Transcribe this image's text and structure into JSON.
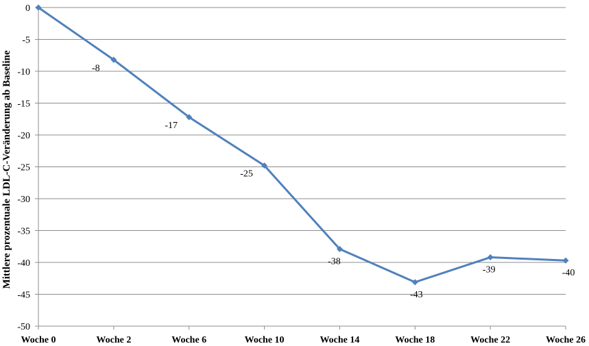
{
  "chart_data": {
    "type": "line",
    "title": "",
    "xlabel": "",
    "ylabel": "Mittlere prozentuale LDL-C-Veränderung  ab Baseline",
    "categories": [
      "Woche 0",
      "Woche 2",
      "Woche 6",
      "Woche 10",
      "Woche 14",
      "Woche 18",
      "Woche 22",
      "Woche 26"
    ],
    "series": [
      {
        "values": [
          0,
          -8.2,
          -17.2,
          -24.8,
          -37.9,
          -43.1,
          -39.2,
          -39.7
        ],
        "data_labels": [
          "",
          "-8",
          "-17",
          "-25",
          "-38",
          "-43",
          "-39",
          "-40"
        ],
        "color": "#4f81bd"
      }
    ],
    "ylim": [
      -50,
      0
    ],
    "yticks": [
      0,
      -5,
      -10,
      -15,
      -20,
      -25,
      -30,
      -35,
      -40,
      -45,
      -50
    ],
    "grid": true,
    "legend": "none"
  }
}
